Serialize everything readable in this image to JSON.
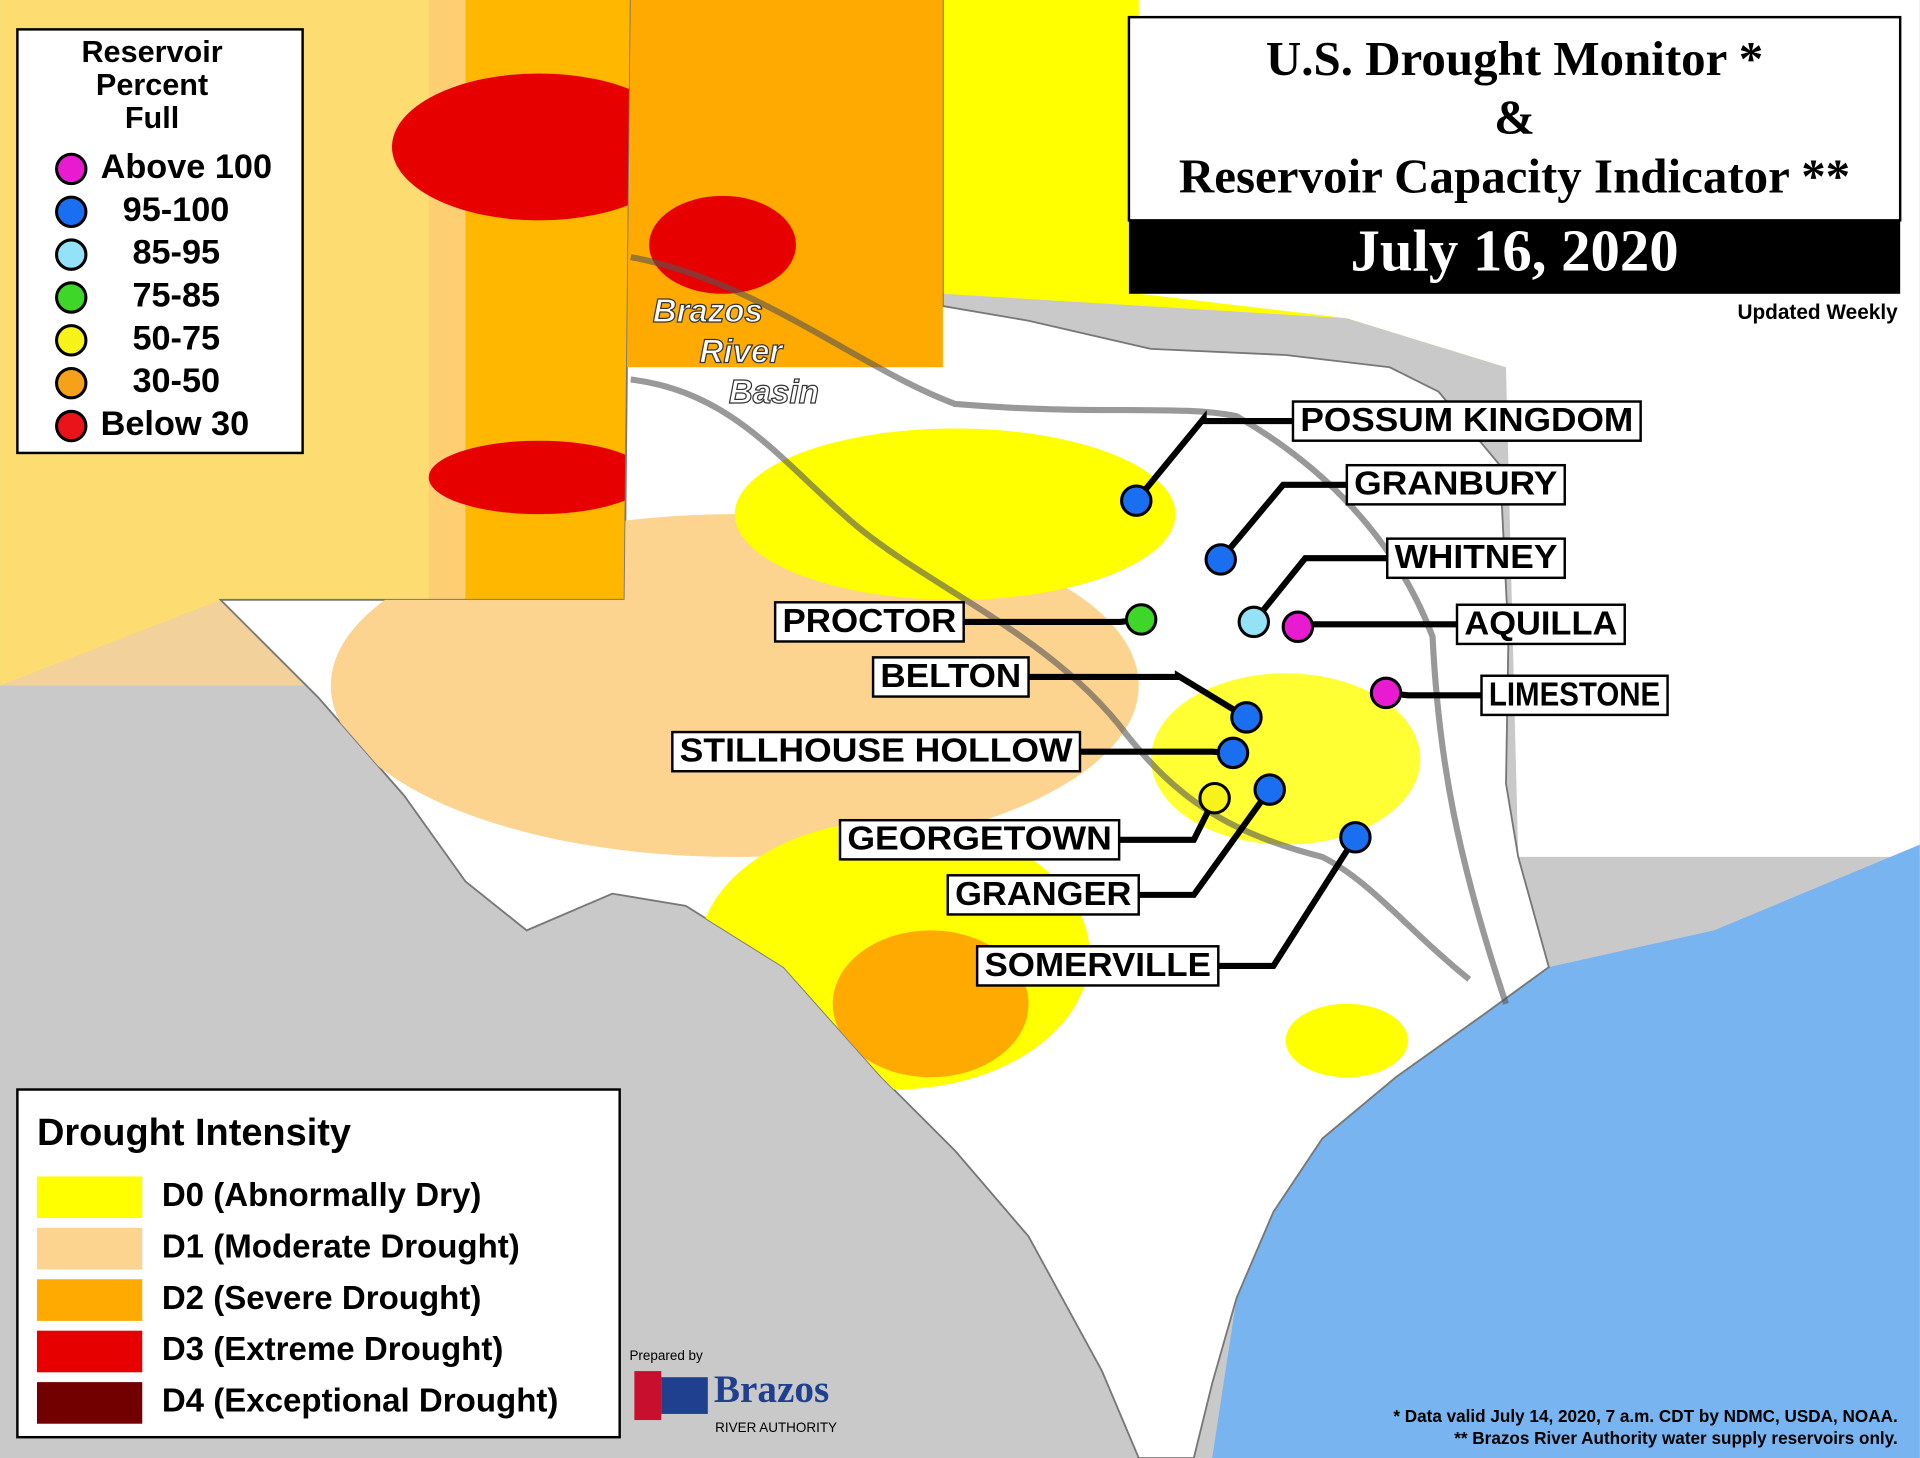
{
  "header": {
    "title_lines": [
      "U.S. Drought Monitor *",
      "&",
      "Reservoir Capacity Indicator **"
    ],
    "date": "July 16, 2020",
    "update_note": "Updated Weekly"
  },
  "reservoir_legend": {
    "title_lines": [
      "Reservoir",
      "Percent",
      "Full"
    ],
    "items": [
      {
        "label": "Above 100",
        "color": "#e81bd0"
      },
      {
        "label": "95-100",
        "color": "#1a6ff0"
      },
      {
        "label": "85-95",
        "color": "#93e2f7"
      },
      {
        "label": "75-85",
        "color": "#3fd62a"
      },
      {
        "label": "50-75",
        "color": "#f7f21a"
      },
      {
        "label": "30-50",
        "color": "#f5a21a"
      },
      {
        "label": "Below 30",
        "color": "#e8141a"
      }
    ]
  },
  "drought_legend": {
    "title": "Drought Intensity",
    "items": [
      {
        "label": "D0 (Abnormally Dry)",
        "color": "#ffff00"
      },
      {
        "label": "D1 (Moderate Drought)",
        "color": "#fcd38f"
      },
      {
        "label": "D2 (Severe Drought)",
        "color": "#ffaa00"
      },
      {
        "label": "D3 (Extreme Drought)",
        "color": "#e60000"
      },
      {
        "label": "D4 (Exceptional Drought)",
        "color": "#730000"
      }
    ]
  },
  "basin_label": [
    "Brazos",
    "River",
    "Basin"
  ],
  "reservoirs": [
    {
      "name": "POSSUM KINGDOM",
      "color": "#1a6ff0"
    },
    {
      "name": "GRANBURY",
      "color": "#1a6ff0"
    },
    {
      "name": "WHITNEY",
      "color": "#93e2f7"
    },
    {
      "name": "AQUILLA",
      "color": "#e81bd0"
    },
    {
      "name": "LIMESTONE",
      "color": "#e81bd0"
    },
    {
      "name": "PROCTOR",
      "color": "#3fd62a"
    },
    {
      "name": "BELTON",
      "color": "#1a6ff0"
    },
    {
      "name": "STILLHOUSE HOLLOW",
      "color": "#1a6ff0"
    },
    {
      "name": "GEORGETOWN",
      "color": "#f7f21a"
    },
    {
      "name": "GRANGER",
      "color": "#1a6ff0"
    },
    {
      "name": "SOMERVILLE",
      "color": "#1a6ff0"
    }
  ],
  "footer": {
    "prepared_by": "Prepared by",
    "org_name": "Brazos",
    "org_subtitle": "RIVER AUTHORITY",
    "notes": [
      "* Data valid July 14, 2020, 7 a.m. CDT by NDMC, USDA, NOAA.",
      "** Brazos River Authority water supply reservoirs only."
    ]
  }
}
